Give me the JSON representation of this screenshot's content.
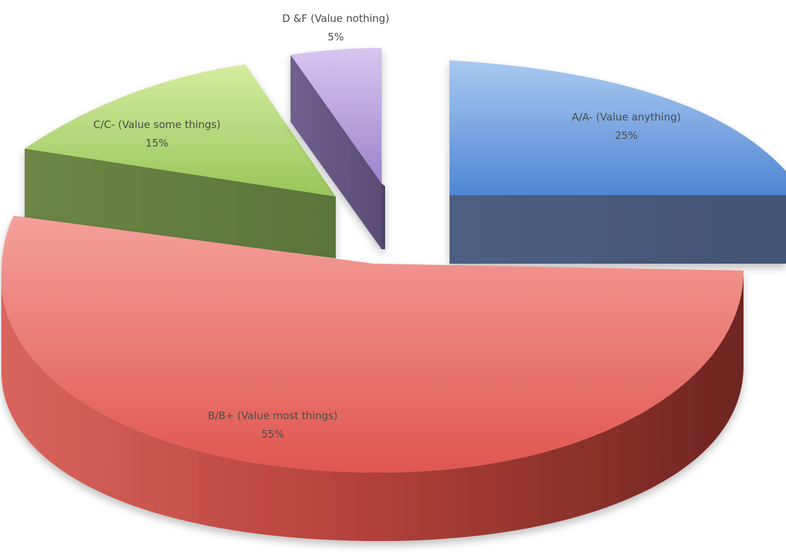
{
  "chart_data": {
    "type": "pie",
    "style": "3d-exploded",
    "slices": [
      {
        "label": "A/A- (Value anything)",
        "value": 25,
        "percent_label": "25%",
        "color": "#5b93dd"
      },
      {
        "label": "B/B+ (Value most things)",
        "value": 55,
        "percent_label": "55%",
        "color": "#e8716d"
      },
      {
        "label": "C/C- (Value some things)",
        "value": 15,
        "percent_label": "15%",
        "color": "#a9d26b"
      },
      {
        "label": "D &F (Value nothing)",
        "value": 5,
        "percent_label": "5%",
        "color": "#a58fd0"
      }
    ]
  }
}
